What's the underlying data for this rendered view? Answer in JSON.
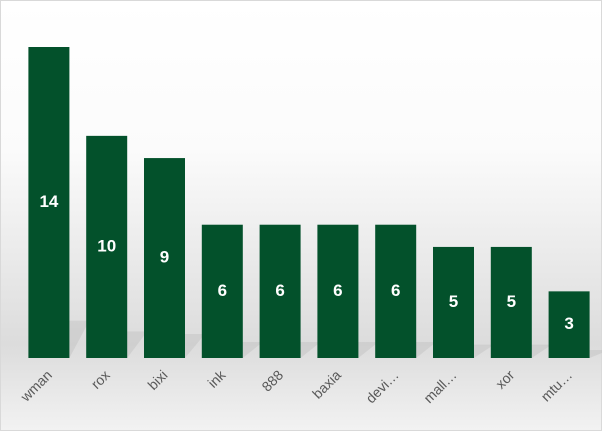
{
  "chart_data": {
    "type": "bar",
    "categories": [
      "wman",
      "rox",
      "bixi",
      "ink",
      "888",
      "baxia",
      "devi…",
      "mall…",
      "xor",
      "mtu…"
    ],
    "values": [
      14,
      10,
      9,
      6,
      6,
      6,
      6,
      5,
      5,
      3
    ],
    "color": "#03512b"
  }
}
